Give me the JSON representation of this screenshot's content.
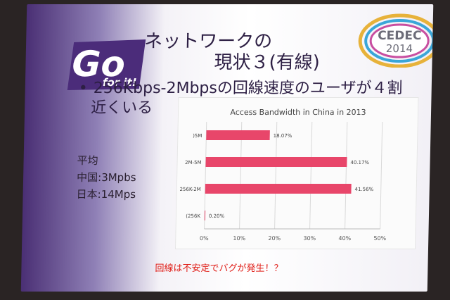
{
  "slide": {
    "logo_top": "Go",
    "logo_bottom": "for it!",
    "title_line1": "ネットワークの",
    "title_line2": "現状３(有線)",
    "badge_top": "CEDEC",
    "badge_year": "2014",
    "bullet_line1": "256Kbps-2Mbpsの回線速度のユーザが４割",
    "bullet_line2": "近くいる",
    "avg_heading": "平均",
    "avg_china": "中国:3Mpbs",
    "avg_japan": "日本:14Mps",
    "caption": "回線は不安定でバグが発生！？"
  },
  "colors": {
    "bar": "#e8466a",
    "title": "#2d1f44",
    "caption": "#e0201a"
  },
  "chart_data": {
    "type": "bar",
    "orientation": "horizontal",
    "title": "Access Bandwidth in China in 2013",
    "categories": [
      ")5M",
      "2M-5M",
      "256K-2M",
      "(256K"
    ],
    "values": [
      18.07,
      40.17,
      41.56,
      0.2
    ],
    "value_labels": [
      "18.07%",
      "40.17%",
      "41.56%",
      "0.20%"
    ],
    "x_ticks": [
      "0%",
      "10%",
      "20%",
      "30%",
      "40%",
      "50%"
    ],
    "xlim": [
      0,
      50
    ],
    "grid": true
  }
}
